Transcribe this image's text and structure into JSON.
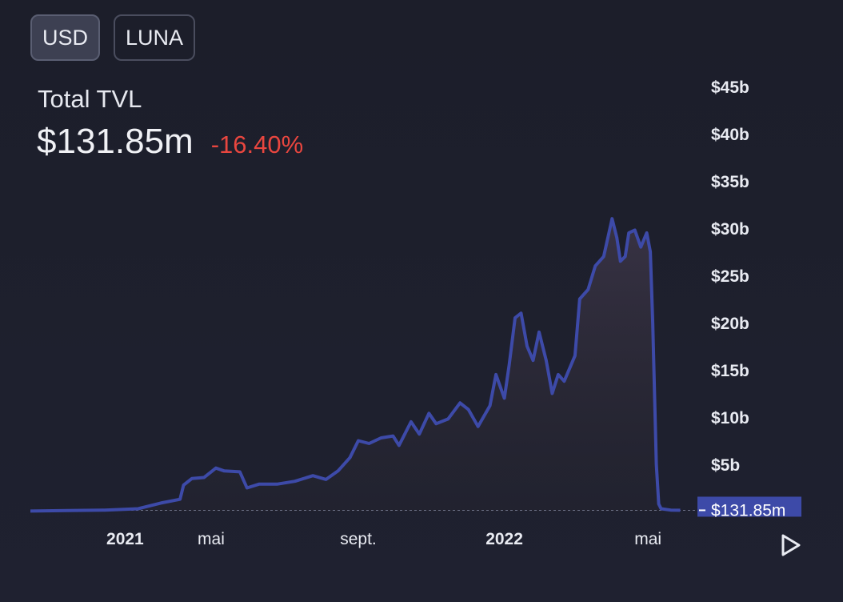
{
  "currency_toggle": [
    {
      "label": "USD",
      "active": true
    },
    {
      "label": "LUNA",
      "active": false
    }
  ],
  "metric": {
    "title": "Total TVL",
    "value": "$131.85m",
    "change": "-16.40%"
  },
  "colors": {
    "line": "#3d4aa8",
    "area_top": "#3a3446",
    "negative": "#e8463f",
    "price_tag": "#3d4aa8"
  },
  "chart_data": {
    "type": "area",
    "y_unit": "USD (billions)",
    "ylim": [
      0,
      45
    ],
    "y_ticks": [
      {
        "value": 5,
        "label": "$5b"
      },
      {
        "value": 10,
        "label": "$10b"
      },
      {
        "value": 15,
        "label": "$15b"
      },
      {
        "value": 20,
        "label": "$20b"
      },
      {
        "value": 25,
        "label": "$25b"
      },
      {
        "value": 30,
        "label": "$30b"
      },
      {
        "value": 35,
        "label": "$35b"
      },
      {
        "value": 40,
        "label": "$40b"
      },
      {
        "value": 45,
        "label": "$45b"
      }
    ],
    "x_ticks": [
      {
        "date": "2021-01-01",
        "label": "2021",
        "bold": true
      },
      {
        "date": "2021-05-01",
        "label": "mai",
        "bold": false
      },
      {
        "date": "2021-09-01",
        "label": "sept.",
        "bold": false
      },
      {
        "date": "2022-01-01",
        "label": "2022",
        "bold": true
      },
      {
        "date": "2022-05-01",
        "label": "mai",
        "bold": false
      }
    ],
    "xlim": [
      "2020-12-01",
      "2022-06-10"
    ],
    "current_value_label": "$131.85m",
    "current_value": 0.13185,
    "grid": false,
    "series": [
      {
        "points": [
          [
            "2020-12-01",
            0.05
          ],
          [
            "2021-01-01",
            0.1
          ],
          [
            "2021-02-01",
            0.15
          ],
          [
            "2021-03-01",
            0.3
          ],
          [
            "2021-03-20",
            0.9
          ],
          [
            "2021-04-05",
            1.3
          ],
          [
            "2021-04-08",
            2.8
          ],
          [
            "2021-04-15",
            3.5
          ],
          [
            "2021-04-25",
            3.6
          ],
          [
            "2021-05-01",
            4.2
          ],
          [
            "2021-05-05",
            4.6
          ],
          [
            "2021-05-12",
            4.3
          ],
          [
            "2021-05-25",
            4.2
          ],
          [
            "2021-05-31",
            2.5
          ],
          [
            "2021-06-10",
            2.9
          ],
          [
            "2021-06-25",
            2.9
          ],
          [
            "2021-07-10",
            3.2
          ],
          [
            "2021-07-25",
            3.8
          ],
          [
            "2021-08-05",
            3.4
          ],
          [
            "2021-08-15",
            4.3
          ],
          [
            "2021-08-25",
            5.7
          ],
          [
            "2021-09-01",
            7.5
          ],
          [
            "2021-09-10",
            7.2
          ],
          [
            "2021-09-20",
            7.8
          ],
          [
            "2021-09-30",
            8.0
          ],
          [
            "2021-10-05",
            7.0
          ],
          [
            "2021-10-15",
            9.5
          ],
          [
            "2021-10-22",
            8.2
          ],
          [
            "2021-10-30",
            10.4
          ],
          [
            "2021-11-05",
            9.3
          ],
          [
            "2021-11-15",
            9.8
          ],
          [
            "2021-11-25",
            11.5
          ],
          [
            "2021-12-02",
            10.8
          ],
          [
            "2021-12-10",
            9.0
          ],
          [
            "2021-12-20",
            11.2
          ],
          [
            "2021-12-25",
            14.5
          ],
          [
            "2022-01-01",
            12.0
          ],
          [
            "2022-01-05",
            15.5
          ],
          [
            "2022-01-10",
            20.5
          ],
          [
            "2022-01-15",
            21.0
          ],
          [
            "2022-01-20",
            17.5
          ],
          [
            "2022-01-25",
            16.0
          ],
          [
            "2022-01-30",
            19.0
          ],
          [
            "2022-02-05",
            16.0
          ],
          [
            "2022-02-10",
            12.5
          ],
          [
            "2022-02-15",
            14.5
          ],
          [
            "2022-02-20",
            13.8
          ],
          [
            "2022-03-01",
            16.5
          ],
          [
            "2022-03-05",
            22.5
          ],
          [
            "2022-03-12",
            23.5
          ],
          [
            "2022-03-18",
            26.0
          ],
          [
            "2022-03-25",
            27.0
          ],
          [
            "2022-04-01",
            31.0
          ],
          [
            "2022-04-05",
            29.0
          ],
          [
            "2022-04-08",
            26.5
          ],
          [
            "2022-04-12",
            27.0
          ],
          [
            "2022-04-15",
            29.5
          ],
          [
            "2022-04-20",
            29.8
          ],
          [
            "2022-04-25",
            28.0
          ],
          [
            "2022-04-30",
            29.5
          ],
          [
            "2022-05-03",
            27.5
          ],
          [
            "2022-05-05",
            20.0
          ],
          [
            "2022-05-08",
            5.0
          ],
          [
            "2022-05-10",
            0.8
          ],
          [
            "2022-05-12",
            0.3
          ],
          [
            "2022-05-20",
            0.15
          ],
          [
            "2022-05-28",
            0.13185
          ]
        ]
      }
    ]
  }
}
